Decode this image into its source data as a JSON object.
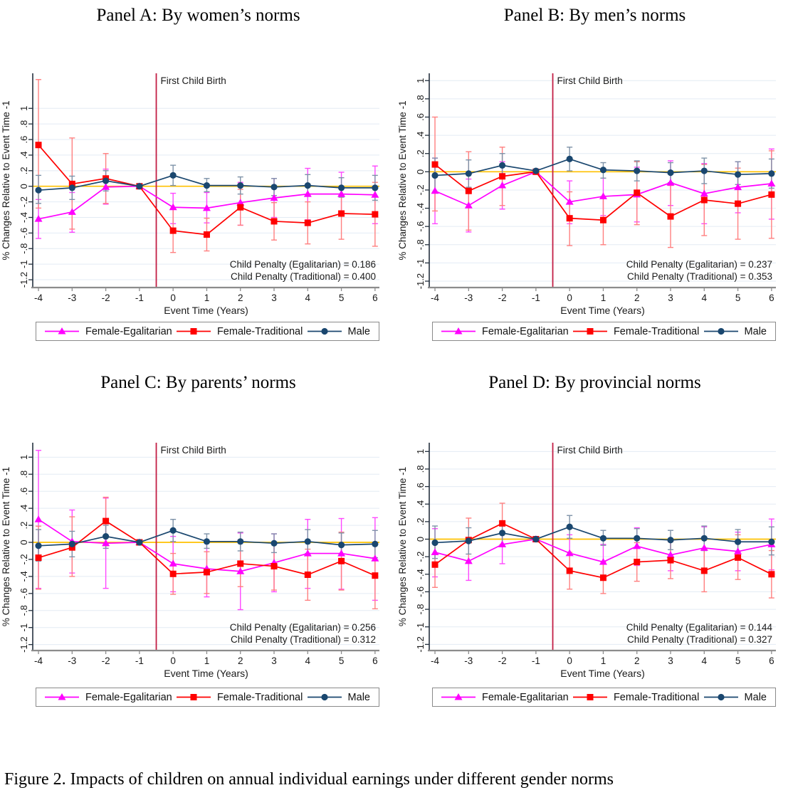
{
  "caption": "Figure 2. Impacts of children on annual individual earnings under different gender norms",
  "colors": {
    "egalitarian": "#FF00FF",
    "egalitarian_ci": "#FF47FF",
    "traditional": "#FF0000",
    "traditional_ci": "#FF8080",
    "male": "#1A476F",
    "male_ci": "#7E92A8",
    "zero_line": "#FFC000",
    "event_line": "#C21E45",
    "grid": "#E3EBF4",
    "y_axis": "#24303E",
    "x_axis": "#8C8C8C"
  },
  "chart_data": [
    {
      "type": "line",
      "title": "Panel A: By women’s norms",
      "xlabel": "Event Time (Years)",
      "ylabel": "% Changes Relative to Event Time -1",
      "event_line_x": -0.5,
      "event_line_label": "First Child Birth",
      "annotations": [
        "Child Penalty (Egalitarian) = 0.186",
        "Child Penalty (Traditional) = 0.400"
      ],
      "x": [
        -4,
        -3,
        -2,
        -1,
        0,
        1,
        2,
        3,
        4,
        5,
        6
      ],
      "xtick_labels": [
        "-4",
        "-3",
        "-2",
        "-1",
        "0",
        "1",
        "2",
        "3",
        "4",
        "5",
        "6"
      ],
      "ytick_values": [
        1,
        0.8,
        0.6,
        0.4,
        0.2,
        0,
        -0.2,
        -0.4,
        -0.6,
        -0.8,
        -1,
        -1.2
      ],
      "ytick_labels": [
        "1",
        ".8",
        ".6",
        ".4",
        ".2",
        "0",
        "-.2",
        "-.4",
        "-.6",
        "-.8",
        "-1",
        "-1.2"
      ],
      "ylim": [
        -1.3,
        1.45
      ],
      "series": [
        {
          "name": "Female-Egalitarian",
          "marker": "triangle",
          "color_key": "egalitarian",
          "ci_color_key": "egalitarian_ci",
          "values": [
            -0.42,
            -0.33,
            -0.01,
            0,
            -0.27,
            -0.28,
            -0.21,
            -0.15,
            -0.1,
            -0.1,
            -0.11
          ],
          "ci_low": [
            -0.67,
            -0.59,
            -0.23,
            0,
            -0.48,
            -0.47,
            -0.5,
            -0.4,
            -0.43,
            -0.38,
            -0.48
          ],
          "ci_high": [
            -0.17,
            -0.08,
            0.22,
            0,
            -0.09,
            -0.08,
            0.05,
            0.1,
            0.23,
            0.18,
            0.26
          ]
        },
        {
          "name": "Female-Traditional",
          "marker": "square",
          "color_key": "traditional",
          "ci_color_key": "traditional_ci",
          "values": [
            0.53,
            0.03,
            0.1,
            0,
            -0.57,
            -0.62,
            -0.27,
            -0.45,
            -0.47,
            -0.35,
            -0.36
          ],
          "ci_low": [
            -0.28,
            -0.55,
            -0.22,
            0,
            -0.85,
            -0.83,
            -0.5,
            -0.69,
            -0.74,
            -0.68,
            -0.77
          ],
          "ci_high": [
            1.37,
            0.62,
            0.42,
            0,
            -0.28,
            -0.41,
            -0.04,
            -0.21,
            -0.2,
            -0.02,
            0.05
          ]
        },
        {
          "name": "Male",
          "marker": "circle",
          "color_key": "male",
          "ci_color_key": "male_ci",
          "values": [
            -0.05,
            -0.02,
            0.07,
            0,
            0.14,
            0.01,
            0.01,
            -0.01,
            0.01,
            -0.02,
            -0.02
          ],
          "ci_low": [
            -0.22,
            -0.17,
            -0.06,
            0,
            0.01,
            -0.07,
            -0.1,
            -0.12,
            -0.13,
            -0.14,
            -0.18
          ],
          "ci_high": [
            0.14,
            0.13,
            0.2,
            0,
            0.27,
            0.1,
            0.12,
            0.1,
            0.15,
            0.11,
            0.14
          ]
        }
      ]
    },
    {
      "type": "line",
      "title": "Panel B: By men’s norms",
      "xlabel": "Event Time (Years)",
      "ylabel": "% Changes Relative to Event Time -1",
      "event_line_x": -0.5,
      "event_line_label": "First Child Birth",
      "annotations": [
        "Child Penalty (Egalitarian) = 0.237",
        "Child Penalty (Traditional) = 0.353"
      ],
      "x": [
        -4,
        -3,
        -2,
        -1,
        0,
        1,
        2,
        3,
        4,
        5,
        6
      ],
      "xtick_labels": [
        "-4",
        "-3",
        "-2",
        "-1",
        "0",
        "1",
        "2",
        "3",
        "4",
        "5",
        "6"
      ],
      "ytick_values": [
        1,
        0.8,
        0.6,
        0.4,
        0.2,
        0,
        -0.2,
        -0.4,
        -0.6,
        -0.8,
        -1,
        -1.2
      ],
      "ytick_labels": [
        "1",
        ".8",
        ".6",
        ".4",
        ".2",
        "0",
        "-.2",
        "-.4",
        "-.6",
        "-.8",
        "-1",
        "-1.2"
      ],
      "ylim": [
        -1.27,
        1.08
      ],
      "series": [
        {
          "name": "Female-Egalitarian",
          "marker": "triangle",
          "color_key": "egalitarian",
          "ci_color_key": "egalitarian_ci",
          "values": [
            -0.21,
            -0.37,
            -0.15,
            0,
            -0.33,
            -0.27,
            -0.25,
            -0.12,
            -0.24,
            -0.17,
            -0.13
          ],
          "ci_low": [
            -0.57,
            -0.66,
            -0.41,
            0,
            -0.57,
            -0.48,
            -0.55,
            -0.37,
            -0.57,
            -0.45,
            -0.52
          ],
          "ci_high": [
            0.15,
            -0.08,
            0.11,
            0,
            -0.1,
            -0.07,
            0.05,
            0.12,
            0.09,
            0.11,
            0.25
          ]
        },
        {
          "name": "Female-Traditional",
          "marker": "square",
          "color_key": "traditional",
          "ci_color_key": "traditional_ci",
          "values": [
            0.08,
            -0.21,
            -0.05,
            0,
            -0.51,
            -0.53,
            -0.23,
            -0.49,
            -0.31,
            -0.35,
            -0.25
          ],
          "ci_low": [
            -0.43,
            -0.64,
            -0.37,
            0,
            -0.81,
            -0.8,
            -0.58,
            -0.83,
            -0.7,
            -0.74,
            -0.73
          ],
          "ci_high": [
            0.6,
            0.22,
            0.27,
            0,
            -0.22,
            -0.27,
            0.11,
            -0.15,
            0.08,
            0.04,
            0.23
          ]
        },
        {
          "name": "Male",
          "marker": "circle",
          "color_key": "male",
          "ci_color_key": "male_ci",
          "values": [
            -0.04,
            -0.02,
            0.07,
            0.01,
            0.14,
            0.02,
            0.01,
            -0.01,
            0.01,
            -0.03,
            -0.02
          ],
          "ci_low": [
            -0.22,
            -0.17,
            -0.07,
            0,
            0.01,
            -0.07,
            -0.1,
            -0.12,
            -0.13,
            -0.14,
            -0.18
          ],
          "ci_high": [
            0.15,
            0.13,
            0.2,
            0,
            0.27,
            0.1,
            0.12,
            0.1,
            0.15,
            0.11,
            0.14
          ]
        }
      ]
    },
    {
      "type": "line",
      "title": "Panel C: By parents’ norms",
      "xlabel": "Event Time (Years)",
      "ylabel": "% Changes Relative to Event Time -1",
      "event_line_x": -0.5,
      "event_line_label": "First Child Birth",
      "annotations": [
        "Child Penalty (Egalitarian) = 0.256",
        "Child Penalty (Traditional) = 0.312"
      ],
      "x": [
        -4,
        -3,
        -2,
        -1,
        0,
        1,
        2,
        3,
        4,
        5,
        6
      ],
      "xtick_labels": [
        "-4",
        "-3",
        "-2",
        "-1",
        "0",
        "1",
        "2",
        "3",
        "4",
        "5",
        "6"
      ],
      "ytick_values": [
        1,
        0.8,
        0.6,
        0.4,
        0.2,
        0,
        -0.2,
        -0.4,
        -0.6,
        -0.8,
        -1,
        -1.2
      ],
      "ytick_labels": [
        "1",
        ".8",
        ".6",
        ".4",
        ".2",
        "0",
        "-.2",
        "-.4",
        "-.6",
        "-.8",
        "-1",
        "-1.2"
      ],
      "ylim": [
        -1.27,
        1.17
      ],
      "series": [
        {
          "name": "Female-Egalitarian",
          "marker": "triangle",
          "color_key": "egalitarian",
          "ci_color_key": "egalitarian_ci",
          "values": [
            0.27,
            0.01,
            -0.01,
            0,
            -0.25,
            -0.31,
            -0.34,
            -0.24,
            -0.13,
            -0.13,
            -0.19
          ],
          "ci_low": [
            -0.54,
            -0.36,
            -0.54,
            0,
            -0.58,
            -0.64,
            -0.79,
            -0.58,
            -0.54,
            -0.55,
            -0.68
          ],
          "ci_high": [
            1.08,
            0.38,
            0.52,
            0,
            0.07,
            0.02,
            0.11,
            0.1,
            0.27,
            0.28,
            0.29
          ]
        },
        {
          "name": "Female-Traditional",
          "marker": "square",
          "color_key": "traditional",
          "ci_color_key": "traditional_ci",
          "values": [
            -0.18,
            -0.06,
            0.25,
            0,
            -0.37,
            -0.35,
            -0.25,
            -0.28,
            -0.38,
            -0.22,
            -0.39
          ],
          "ci_low": [
            -0.55,
            -0.4,
            -0.04,
            0,
            -0.61,
            -0.6,
            -0.52,
            -0.56,
            -0.68,
            -0.56,
            -0.78
          ],
          "ci_high": [
            0.19,
            0.3,
            0.53,
            0,
            -0.13,
            -0.11,
            0.03,
            0.0,
            -0.08,
            0.12,
            0.0
          ]
        },
        {
          "name": "Male",
          "marker": "circle",
          "color_key": "male",
          "ci_color_key": "male_ci",
          "values": [
            -0.04,
            -0.02,
            0.07,
            0,
            0.14,
            0.01,
            0.01,
            -0.01,
            0.01,
            -0.03,
            -0.02
          ],
          "ci_low": [
            -0.22,
            -0.17,
            -0.07,
            0,
            0.01,
            -0.07,
            -0.1,
            -0.12,
            -0.13,
            -0.14,
            -0.18
          ],
          "ci_high": [
            0.15,
            0.13,
            0.2,
            0,
            0.27,
            0.1,
            0.12,
            0.1,
            0.15,
            0.11,
            0.14
          ]
        }
      ]
    },
    {
      "type": "line",
      "title": "Panel D: By provincial norms",
      "xlabel": "Event Time (Years)",
      "ylabel": "% Changes Relative to Event Time -1",
      "event_line_x": -0.5,
      "event_line_label": "First Child Birth",
      "annotations": [
        "Child Penalty (Egalitarian) = 0.144",
        "Child Penalty (Traditional) = 0.327"
      ],
      "x": [
        -4,
        -3,
        -2,
        -1,
        0,
        1,
        2,
        3,
        4,
        5,
        6
      ],
      "xtick_labels": [
        "-4",
        "-3",
        "-2",
        "-1",
        "0",
        "1",
        "2",
        "3",
        "4",
        "5",
        "6"
      ],
      "ytick_values": [
        1,
        0.8,
        0.6,
        0.4,
        0.2,
        0,
        -0.2,
        -0.4,
        -0.6,
        -0.8,
        -1,
        -1.2
      ],
      "ytick_labels": [
        "1",
        ".8",
        ".6",
        ".4",
        ".2",
        "0",
        "-.2",
        "-.4",
        "-.6",
        "-.8",
        "-1",
        "-1.2"
      ],
      "ylim": [
        -1.27,
        1.1
      ],
      "series": [
        {
          "name": "Female-Egalitarian",
          "marker": "triangle",
          "color_key": "egalitarian",
          "ci_color_key": "egalitarian_ci",
          "values": [
            -0.15,
            -0.25,
            -0.06,
            0,
            -0.16,
            -0.26,
            -0.08,
            -0.18,
            -0.1,
            -0.14,
            -0.06
          ],
          "ci_low": [
            -0.43,
            -0.47,
            -0.28,
            0,
            -0.36,
            -0.45,
            -0.3,
            -0.36,
            -0.33,
            -0.36,
            -0.35
          ],
          "ci_high": [
            0.12,
            -0.03,
            0.17,
            0,
            0.05,
            -0.06,
            0.13,
            0.0,
            0.14,
            0.08,
            0.23
          ]
        },
        {
          "name": "Female-Traditional",
          "marker": "square",
          "color_key": "traditional",
          "ci_color_key": "traditional_ci",
          "values": [
            -0.29,
            -0.01,
            0.18,
            0,
            -0.36,
            -0.44,
            -0.26,
            -0.24,
            -0.36,
            -0.21,
            -0.4
          ],
          "ci_low": [
            -0.55,
            -0.26,
            -0.06,
            0,
            -0.57,
            -0.62,
            -0.48,
            -0.45,
            -0.6,
            -0.46,
            -0.67
          ],
          "ci_high": [
            -0.03,
            0.24,
            0.41,
            0,
            -0.15,
            -0.26,
            -0.04,
            -0.03,
            -0.12,
            0.05,
            -0.13
          ]
        },
        {
          "name": "Male",
          "marker": "circle",
          "color_key": "male",
          "ci_color_key": "male_ci",
          "values": [
            -0.04,
            -0.02,
            0.07,
            0,
            0.14,
            0.01,
            0.01,
            -0.01,
            0.01,
            -0.03,
            -0.03
          ],
          "ci_low": [
            -0.22,
            -0.17,
            -0.07,
            0,
            0.01,
            -0.07,
            -0.1,
            -0.12,
            -0.13,
            -0.14,
            -0.18
          ],
          "ci_high": [
            0.15,
            0.13,
            0.2,
            0,
            0.27,
            0.1,
            0.12,
            0.1,
            0.15,
            0.11,
            0.14
          ]
        }
      ]
    }
  ]
}
